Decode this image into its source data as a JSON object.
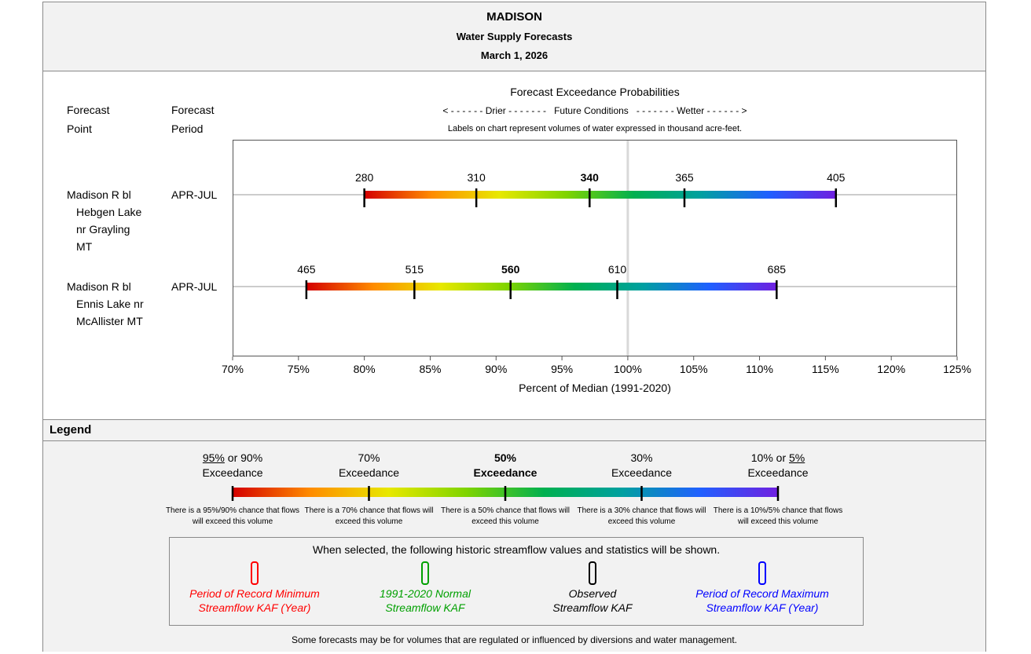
{
  "header": {
    "station": "MADISON",
    "subtitle": "Water Supply Forecasts",
    "date": "March 1, 2026"
  },
  "columns": {
    "forecast_point_line1": "Forecast",
    "forecast_point_line2": "Point",
    "forecast_period_line1": "Forecast",
    "forecast_period_line2": "Period"
  },
  "chart_header": {
    "title": "Forecast Exceedance Probabilities",
    "scale_left": "< - - - - - -  Drier  - - - - - - -",
    "scale_middle": "Future Conditions",
    "scale_right": "- - - - - - -  Wetter  - - - - - - >",
    "units_note": "Labels on chart represent volumes of water expressed in thousand acre-feet."
  },
  "colors": {
    "gradient": [
      "#d40000",
      "#ff8c00",
      "#e8e800",
      "#7fd400",
      "#00b050",
      "#00a0a0",
      "#2060ff",
      "#7020e0"
    ],
    "median_line": "#d9d9d9",
    "min_color": "#ff0000",
    "normal_color": "#00a000",
    "observed_color": "#000000",
    "max_color": "#0000ff"
  },
  "chart_data": {
    "type": "range-bar",
    "xlabel": "Percent of Median (1991-2020)",
    "xlim": [
      70,
      125
    ],
    "xticks": [
      70,
      75,
      80,
      85,
      90,
      95,
      100,
      105,
      110,
      115,
      120,
      125
    ],
    "xtick_labels": [
      "70%",
      "75%",
      "80%",
      "85%",
      "90%",
      "95%",
      "100%",
      "105%",
      "110%",
      "115%",
      "120%",
      "125%"
    ],
    "median_reference": 100,
    "exceedance_levels": [
      "90%",
      "70%",
      "50%",
      "30%",
      "10%"
    ],
    "rows": [
      {
        "point_lines": [
          "Madison R bl",
          "Hebgen Lake",
          "nr Grayling",
          "MT"
        ],
        "period": "APR-JUL",
        "percent": [
          80,
          88.5,
          97.1,
          104.3,
          115.8
        ],
        "volumes": [
          "280",
          "310",
          "340",
          "365",
          "405"
        ]
      },
      {
        "point_lines": [
          "Madison R bl",
          "Ennis Lake nr",
          "McAllister MT"
        ],
        "period": "APR-JUL",
        "percent": [
          75.6,
          83.8,
          91.1,
          99.2,
          111.3
        ],
        "volumes": [
          "465",
          "515",
          "560",
          "610",
          "685"
        ]
      }
    ]
  },
  "legend": {
    "title": "Legend",
    "levels": [
      {
        "head_line1_prefix_u": "95%",
        "head_line1_rest": " or 90%",
        "head_line2": "Exceedance",
        "desc": "There is a 95%/90% chance that flows will exceed this volume"
      },
      {
        "head_line1": "70%",
        "head_line2": "Exceedance",
        "desc": "There is a 70% chance that flows will exceed this volume"
      },
      {
        "head_line1": "50%",
        "head_line2": "Exceedance",
        "desc": "There is a 50% chance that flows will exceed this volume"
      },
      {
        "head_line1": "30%",
        "head_line2": "Exceedance",
        "desc": "There is a 30% chance that flows will exceed this volume"
      },
      {
        "head_line1_rest": "10% or ",
        "head_line1_suffix_u": "5%",
        "head_line2": "Exceedance",
        "desc": "There is a 10%/5% chance that flows will exceed this volume"
      }
    ],
    "historic_title": "When selected, the following historic streamflow values and statistics will be shown.",
    "historic": [
      {
        "line1": "Period of Record Minimum",
        "line2": "Streamflow KAF (Year)"
      },
      {
        "line1": "1991-2020 Normal",
        "line2": "Streamflow KAF"
      },
      {
        "line1": "Observed",
        "line2": "Streamflow KAF"
      },
      {
        "line1": "Period of Record Maximum",
        "line2": "Streamflow KAF (Year)"
      }
    ],
    "footnote": "Some forecasts may be for volumes that are regulated or influenced by diversions and water management."
  }
}
